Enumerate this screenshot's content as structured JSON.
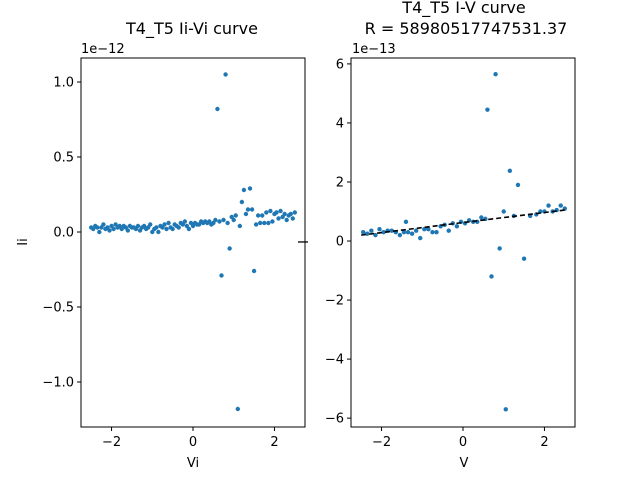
{
  "chart_data": [
    {
      "type": "scatter",
      "title": "T4_T5 Ii-Vi curve",
      "xlabel": "Vi",
      "ylabel": "Ii",
      "y_offset_label": "1e−12",
      "xlim": [
        -2.75,
        2.75
      ],
      "ylim": [
        -1.3,
        1.16
      ],
      "x_ticks": [
        {
          "value": -2,
          "label": "−2"
        },
        {
          "value": 0,
          "label": "0"
        },
        {
          "value": 2,
          "label": "2"
        }
      ],
      "y_ticks": [
        {
          "value": -1.0,
          "label": "−1.0"
        },
        {
          "value": -0.5,
          "label": "−0.5"
        },
        {
          "value": 0.0,
          "label": "0.0"
        },
        {
          "value": 0.5,
          "label": "0.5"
        },
        {
          "value": 1.0,
          "label": "1.0"
        }
      ],
      "marker_color": "#1f77b4",
      "points": [
        [
          -2.5,
          0.03
        ],
        [
          -2.45,
          0.02
        ],
        [
          -2.4,
          0.04
        ],
        [
          -2.35,
          0.03
        ],
        [
          -2.3,
          0.0
        ],
        [
          -2.25,
          0.03
        ],
        [
          -2.2,
          0.05
        ],
        [
          -2.15,
          0.02
        ],
        [
          -2.1,
          0.03
        ],
        [
          -2.05,
          0.01
        ],
        [
          -2.0,
          0.04
        ],
        [
          -1.95,
          0.02
        ],
        [
          -1.9,
          0.05
        ],
        [
          -1.85,
          0.03
        ],
        [
          -1.8,
          0.04
        ],
        [
          -1.75,
          0.02
        ],
        [
          -1.7,
          0.04
        ],
        [
          -1.65,
          0.03
        ],
        [
          -1.6,
          0.01
        ],
        [
          -1.55,
          0.04
        ],
        [
          -1.5,
          0.03
        ],
        [
          -1.45,
          0.03
        ],
        [
          -1.4,
          0.02
        ],
        [
          -1.35,
          0.04
        ],
        [
          -1.3,
          0.01
        ],
        [
          -1.25,
          0.03
        ],
        [
          -1.2,
          0.04
        ],
        [
          -1.15,
          0.02
        ],
        [
          -1.1,
          0.03
        ],
        [
          -1.05,
          0.05
        ],
        [
          -1.0,
          0.0
        ],
        [
          -0.95,
          0.02
        ],
        [
          -0.9,
          0.03
        ],
        [
          -0.85,
          0.0
        ],
        [
          -0.8,
          0.04
        ],
        [
          -0.75,
          0.03
        ],
        [
          -0.7,
          0.05
        ],
        [
          -0.65,
          0.02
        ],
        [
          -0.6,
          0.06
        ],
        [
          -0.55,
          0.03
        ],
        [
          -0.5,
          0.02
        ],
        [
          -0.45,
          0.05
        ],
        [
          -0.4,
          0.04
        ],
        [
          -0.35,
          0.03
        ],
        [
          -0.3,
          0.06
        ],
        [
          -0.25,
          0.05
        ],
        [
          -0.2,
          0.07
        ],
        [
          -0.15,
          0.04
        ],
        [
          -0.1,
          0.02
        ],
        [
          -0.05,
          0.06
        ],
        [
          0.0,
          0.04
        ],
        [
          0.05,
          0.06
        ],
        [
          0.1,
          0.05
        ],
        [
          0.15,
          0.05
        ],
        [
          0.2,
          0.07
        ],
        [
          0.25,
          0.06
        ],
        [
          0.3,
          0.07
        ],
        [
          0.35,
          0.06
        ],
        [
          0.4,
          0.07
        ],
        [
          0.45,
          0.05
        ],
        [
          0.5,
          0.06
        ],
        [
          0.55,
          0.08
        ],
        [
          0.6,
          0.82
        ],
        [
          0.65,
          0.07
        ],
        [
          0.7,
          -0.29
        ],
        [
          0.75,
          0.08
        ],
        [
          0.8,
          1.05
        ],
        [
          0.85,
          0.06
        ],
        [
          0.9,
          -0.11
        ],
        [
          0.95,
          0.1
        ],
        [
          1.0,
          0.08
        ],
        [
          1.05,
          0.11
        ],
        [
          1.1,
          -1.18
        ],
        [
          1.15,
          0.04
        ],
        [
          1.2,
          0.2
        ],
        [
          1.25,
          0.28
        ],
        [
          1.3,
          0.12
        ],
        [
          1.35,
          0.15
        ],
        [
          1.4,
          0.29
        ],
        [
          1.45,
          0.15
        ],
        [
          1.5,
          -0.26
        ],
        [
          1.55,
          0.05
        ],
        [
          1.6,
          0.11
        ],
        [
          1.65,
          0.06
        ],
        [
          1.7,
          0.11
        ],
        [
          1.75,
          0.06
        ],
        [
          1.8,
          0.13
        ],
        [
          1.85,
          0.06
        ],
        [
          1.9,
          0.14
        ],
        [
          1.95,
          0.07
        ],
        [
          2.0,
          0.12
        ],
        [
          2.05,
          0.13
        ],
        [
          2.1,
          0.09
        ],
        [
          2.15,
          0.14
        ],
        [
          2.2,
          0.1
        ],
        [
          2.25,
          0.12
        ],
        [
          2.3,
          0.08
        ],
        [
          2.35,
          0.11
        ],
        [
          2.4,
          0.12
        ],
        [
          2.45,
          0.09
        ],
        [
          2.5,
          0.13
        ]
      ]
    },
    {
      "type": "scatter",
      "title": "T4_T5 I-V curve",
      "subtitle": "R = 58980517747531.37",
      "xlabel": "V",
      "ylabel": "I",
      "y_offset_label": "1e−13",
      "xlim": [
        -2.75,
        2.75
      ],
      "ylim": [
        -6.3,
        6.2
      ],
      "x_ticks": [
        {
          "value": -2,
          "label": "−2"
        },
        {
          "value": 0,
          "label": "0"
        },
        {
          "value": 2,
          "label": "2"
        }
      ],
      "y_ticks": [
        {
          "value": -6,
          "label": "−6"
        },
        {
          "value": -4,
          "label": "−4"
        },
        {
          "value": -2,
          "label": "−2"
        },
        {
          "value": 0,
          "label": "0"
        },
        {
          "value": 2,
          "label": "2"
        },
        {
          "value": 4,
          "label": "4"
        },
        {
          "value": 6,
          "label": "6"
        }
      ],
      "marker_color": "#1f77b4",
      "fit_line": {
        "x": [
          -2.5,
          2.5
        ],
        "y": [
          0.2,
          1.05
        ],
        "color": "#000000",
        "style": "dashed"
      },
      "points": [
        [
          -2.45,
          0.3
        ],
        [
          -2.35,
          0.25
        ],
        [
          -2.25,
          0.35
        ],
        [
          -2.15,
          0.2
        ],
        [
          -2.05,
          0.4
        ],
        [
          -1.95,
          0.3
        ],
        [
          -1.85,
          0.35
        ],
        [
          -1.75,
          0.35
        ],
        [
          -1.65,
          0.3
        ],
        [
          -1.55,
          0.2
        ],
        [
          -1.45,
          0.3
        ],
        [
          -1.4,
          0.65
        ],
        [
          -1.35,
          0.3
        ],
        [
          -1.25,
          0.25
        ],
        [
          -1.15,
          0.35
        ],
        [
          -1.05,
          0.1
        ],
        [
          -0.95,
          0.4
        ],
        [
          -0.85,
          0.4
        ],
        [
          -0.75,
          0.3
        ],
        [
          -0.65,
          0.3
        ],
        [
          -0.55,
          0.5
        ],
        [
          -0.45,
          0.55
        ],
        [
          -0.35,
          0.35
        ],
        [
          -0.25,
          0.6
        ],
        [
          -0.15,
          0.5
        ],
        [
          -0.05,
          0.65
        ],
        [
          0.05,
          0.6
        ],
        [
          0.15,
          0.7
        ],
        [
          0.25,
          0.65
        ],
        [
          0.35,
          0.65
        ],
        [
          0.45,
          0.8
        ],
        [
          0.55,
          0.75
        ],
        [
          0.6,
          4.45
        ],
        [
          0.7,
          -1.2
        ],
        [
          0.8,
          5.65
        ],
        [
          0.9,
          -0.25
        ],
        [
          1.0,
          1.0
        ],
        [
          1.05,
          -5.7
        ],
        [
          1.15,
          2.38
        ],
        [
          1.25,
          0.85
        ],
        [
          1.35,
          1.9
        ],
        [
          1.5,
          -0.6
        ],
        [
          1.65,
          0.85
        ],
        [
          1.8,
          0.9
        ],
        [
          1.9,
          1.0
        ],
        [
          2.0,
          1.0
        ],
        [
          2.1,
          1.2
        ],
        [
          2.2,
          1.0
        ],
        [
          2.3,
          1.05
        ],
        [
          2.4,
          1.2
        ],
        [
          2.5,
          1.1
        ]
      ]
    }
  ]
}
